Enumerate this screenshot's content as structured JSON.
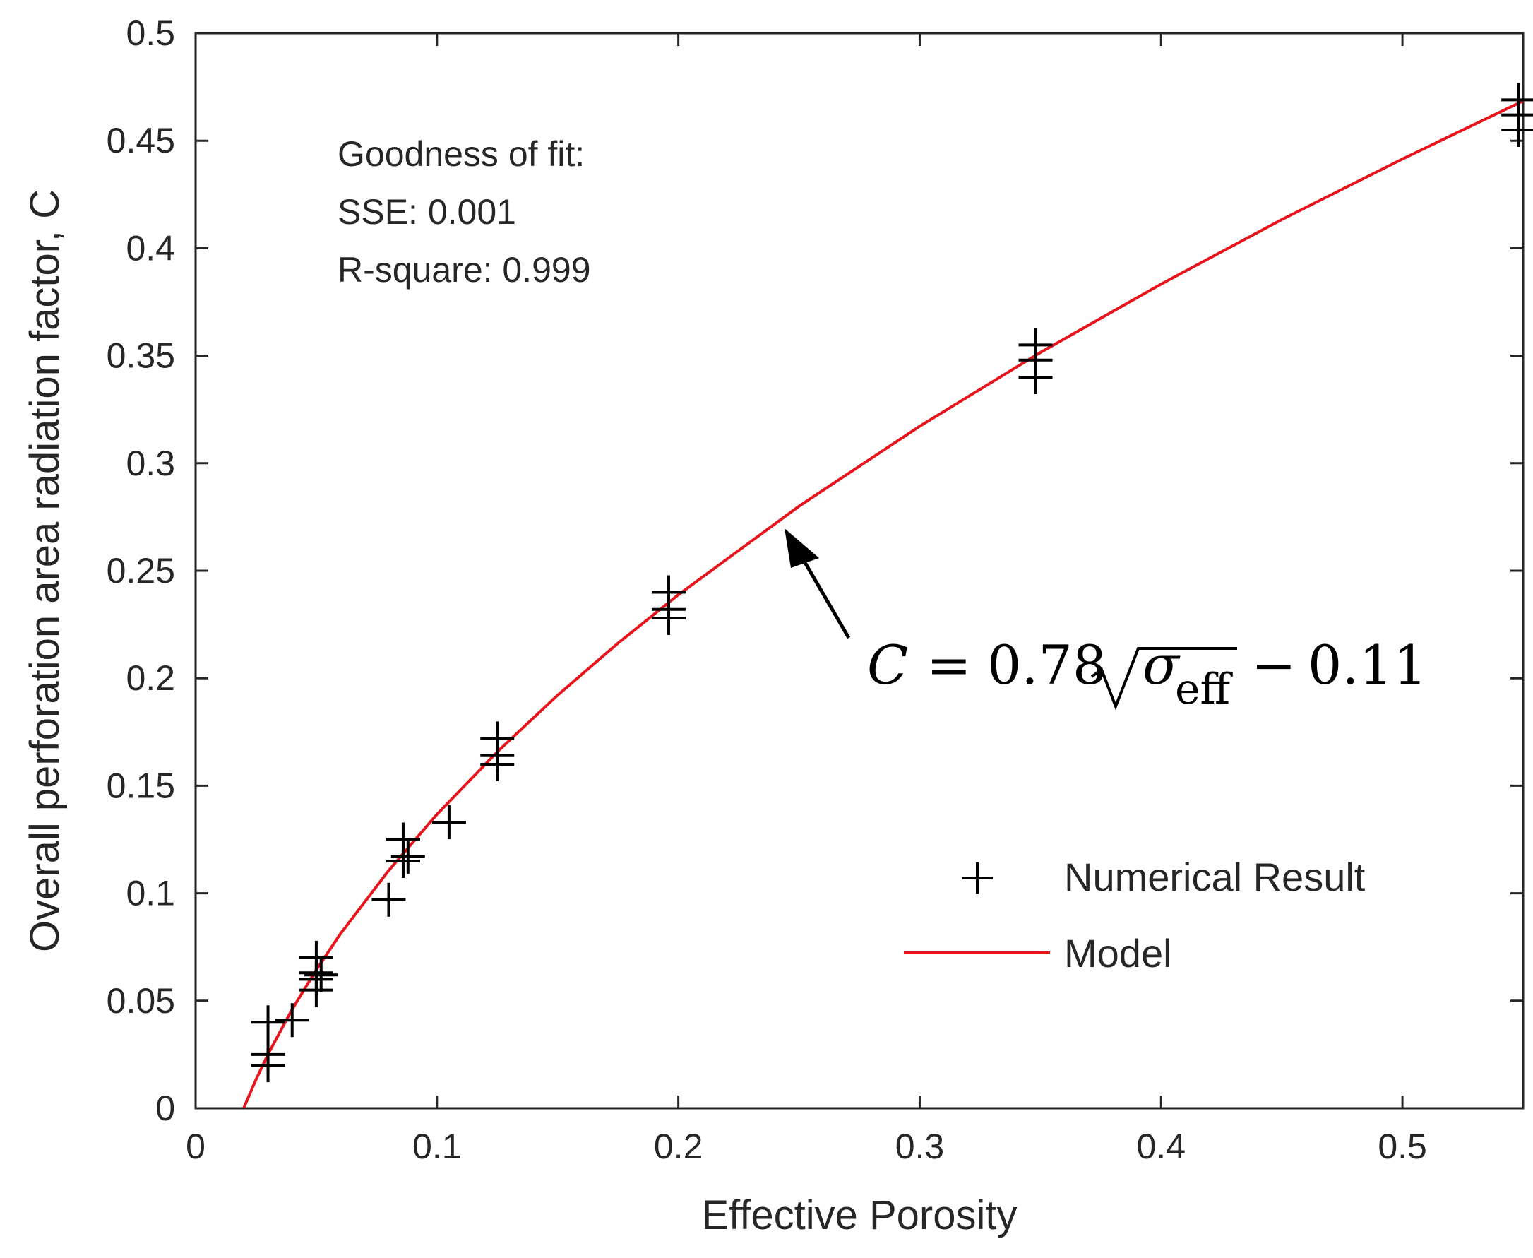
{
  "chart_data": {
    "type": "scatter",
    "xlabel": "Effective Porosity",
    "ylabel": "Overall perforation area radiation factor, C",
    "xlim": [
      0,
      0.55
    ],
    "ylim": [
      0,
      0.5
    ],
    "xticks": [
      0,
      0.1,
      0.2,
      0.3,
      0.4,
      0.5
    ],
    "xtick_labels": [
      "0",
      "0.1",
      "0.2",
      "0.3",
      "0.4",
      "0.5"
    ],
    "yticks": [
      0,
      0.05,
      0.1,
      0.15,
      0.2,
      0.25,
      0.3,
      0.35,
      0.4,
      0.45,
      0.5
    ],
    "ytick_labels": [
      "0",
      "0.05",
      "0.1",
      "0.15",
      "0.2",
      "0.25",
      "0.3",
      "0.35",
      "0.4",
      "0.45",
      "0.5"
    ],
    "grid": false,
    "legend_position": "lower-right",
    "series": [
      {
        "name": "Numerical Result",
        "kind": "markers",
        "marker": "plus",
        "color": "#000000",
        "x": [
          0.03,
          0.03,
          0.03,
          0.04,
          0.05,
          0.05,
          0.05,
          0.05,
          0.052,
          0.08,
          0.086,
          0.086,
          0.088,
          0.105,
          0.125,
          0.125,
          0.125,
          0.196,
          0.196,
          0.196,
          0.348,
          0.348,
          0.348,
          0.548,
          0.548,
          0.548
        ],
        "y": [
          0.02,
          0.025,
          0.04,
          0.041,
          0.055,
          0.06,
          0.07,
          0.063,
          0.062,
          0.097,
          0.115,
          0.125,
          0.117,
          0.133,
          0.16,
          0.164,
          0.172,
          0.228,
          0.232,
          0.24,
          0.34,
          0.348,
          0.355,
          0.455,
          0.462,
          0.469
        ]
      },
      {
        "name": "Model",
        "kind": "line",
        "color": "#e8141c",
        "x": [
          0.02,
          0.025,
          0.03,
          0.04,
          0.05,
          0.06,
          0.08,
          0.1,
          0.125,
          0.15,
          0.175,
          0.2,
          0.25,
          0.3,
          0.35,
          0.4,
          0.45,
          0.5,
          0.55
        ],
        "y": [
          0.0003,
          0.0133,
          0.0251,
          0.046,
          0.0644,
          0.0811,
          0.1106,
          0.1367,
          0.1658,
          0.1921,
          0.2163,
          0.2388,
          0.28,
          0.3172,
          0.3515,
          0.3833,
          0.4133,
          0.4415,
          0.4685
        ]
      }
    ],
    "annotations": {
      "fit_title": "Goodness of fit:",
      "fit_sse": "SSE: 0.001",
      "fit_r2": "R-square: 0.999",
      "equation": {
        "lhs": "C",
        "equals": "=",
        "coef": "0.78",
        "radicand_base": "σ",
        "radicand_sub": "eff",
        "minus": "−",
        "const": "0.11",
        "arrow_target": {
          "x": 0.245,
          "y": 0.272
        }
      }
    }
  }
}
